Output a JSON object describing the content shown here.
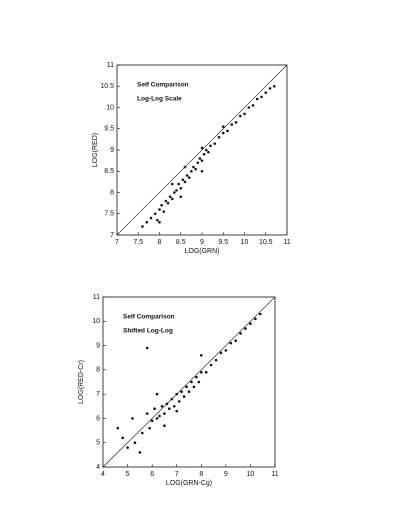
{
  "chart_data": [
    {
      "type": "scatter",
      "annotations": [
        "Self Comparison",
        "Log-Log Scale"
      ],
      "x_label": "LOG(GRN)",
      "y_label": "LOG(RED)",
      "xlim": [
        7,
        11
      ],
      "ylim": [
        7,
        11
      ],
      "xticks": [
        7,
        7.5,
        8,
        8.5,
        9,
        9.5,
        10,
        10.5,
        11
      ],
      "yticks": [
        7,
        7.5,
        8,
        8.5,
        9,
        9.5,
        10,
        10.5,
        11
      ],
      "color": "#111111",
      "x": [
        7.7,
        7.8,
        7.9,
        7.95,
        8.0,
        8.05,
        8.1,
        8.15,
        8.2,
        8.25,
        8.3,
        8.35,
        8.4,
        8.45,
        8.5,
        8.55,
        8.6,
        8.65,
        8.7,
        8.75,
        8.8,
        8.85,
        8.9,
        8.95,
        9.0,
        9.05,
        9.1,
        9.15,
        9.2,
        9.3,
        9.4,
        9.5,
        9.6,
        9.7,
        9.8,
        9.9,
        10.0,
        10.1,
        10.2,
        10.3,
        10.4,
        10.5,
        10.6,
        10.7,
        7.6,
        8.0,
        8.3,
        8.6,
        9.0,
        9.5,
        9.0,
        8.5
      ],
      "values": [
        7.3,
        7.4,
        7.5,
        7.35,
        7.6,
        7.7,
        7.55,
        7.8,
        7.75,
        7.9,
        7.85,
        8.0,
        8.05,
        8.2,
        8.1,
        8.3,
        8.25,
        8.4,
        8.35,
        8.5,
        8.6,
        8.55,
        8.7,
        8.8,
        8.75,
        8.9,
        9.0,
        8.95,
        9.1,
        9.15,
        9.3,
        9.4,
        9.45,
        9.6,
        9.65,
        9.8,
        9.85,
        10.0,
        10.05,
        10.2,
        10.25,
        10.35,
        10.45,
        10.5,
        7.2,
        7.3,
        8.2,
        8.6,
        9.05,
        9.55,
        8.5,
        7.9
      ]
    },
    {
      "type": "scatter",
      "annotations": [
        "Self Comparison",
        "Shifted Log-Log"
      ],
      "x_label": "LOG(GRN-Cg)",
      "y_label": "LOG(RED-Cr)",
      "xlim": [
        4,
        11
      ],
      "ylim": [
        4,
        11
      ],
      "xticks": [
        4,
        5,
        6,
        7,
        8,
        9,
        10,
        11
      ],
      "yticks": [
        4,
        5,
        6,
        7,
        8,
        9,
        10,
        11
      ],
      "color": "#111111",
      "x": [
        4.6,
        4.8,
        5.0,
        5.2,
        5.3,
        5.6,
        5.8,
        5.9,
        6.0,
        6.1,
        6.2,
        6.3,
        6.4,
        6.5,
        6.6,
        6.7,
        6.8,
        6.9,
        7.0,
        7.1,
        7.2,
        7.3,
        7.4,
        7.5,
        7.6,
        7.7,
        7.8,
        7.9,
        8.0,
        8.2,
        8.4,
        8.6,
        8.8,
        9.0,
        9.2,
        9.4,
        9.6,
        9.8,
        10.0,
        10.2,
        10.4,
        6.5,
        7.0,
        5.5,
        6.2,
        8.0,
        5.8
      ],
      "values": [
        5.6,
        5.2,
        4.8,
        6.0,
        5.0,
        5.4,
        6.2,
        5.6,
        5.9,
        6.4,
        6.0,
        6.1,
        6.5,
        6.2,
        6.6,
        6.4,
        6.8,
        6.5,
        7.0,
        6.7,
        7.1,
        6.9,
        7.3,
        7.1,
        7.5,
        7.3,
        7.7,
        7.5,
        7.9,
        7.9,
        8.2,
        8.4,
        8.7,
        8.8,
        9.1,
        9.2,
        9.5,
        9.7,
        9.9,
        10.1,
        10.3,
        5.7,
        6.3,
        4.6,
        7.0,
        8.6,
        8.9
      ]
    }
  ]
}
